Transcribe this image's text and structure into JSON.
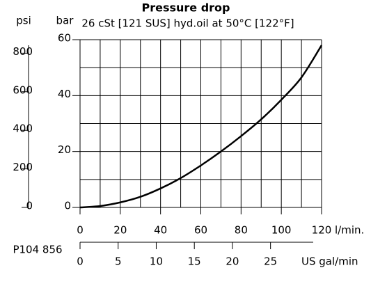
{
  "chart_data": {
    "type": "line",
    "title": "Pressure drop",
    "subtitle": "26 cSt [121 SUS] hyd.oil at 50°C [122°F]",
    "x_label": "l/min.",
    "y_label": "bar",
    "y2_label": "psi",
    "x2_label": "US gal/min",
    "annotation": "P104 856",
    "x": [
      0,
      10,
      20,
      30,
      40,
      50,
      60,
      70,
      80,
      90,
      100,
      110,
      120
    ],
    "series": [
      {
        "color": "#000000",
        "values": [
          0,
          0.5,
          1.8,
          3.8,
          6.8,
          10.5,
          15,
          20,
          25.5,
          31.5,
          38.5,
          46.5,
          58
        ]
      }
    ],
    "xlim": [
      0,
      120
    ],
    "xticks": [
      0,
      20,
      40,
      60,
      80,
      100,
      120
    ],
    "ylim": [
      0,
      60
    ],
    "yticks": [
      0,
      20,
      40,
      60
    ],
    "y2lim": [
      0,
      870
    ],
    "y2ticks": [
      0,
      200,
      400,
      600,
      800
    ],
    "x2lim": [
      0,
      31.7
    ],
    "x2ticks": [
      0,
      5,
      10,
      15,
      20,
      25
    ],
    "xgrid": [
      0,
      10,
      20,
      30,
      40,
      50,
      60,
      70,
      80,
      90,
      100,
      110,
      120
    ],
    "ygrid": [
      0,
      10,
      20,
      30,
      40,
      50,
      60
    ],
    "grid": true
  }
}
